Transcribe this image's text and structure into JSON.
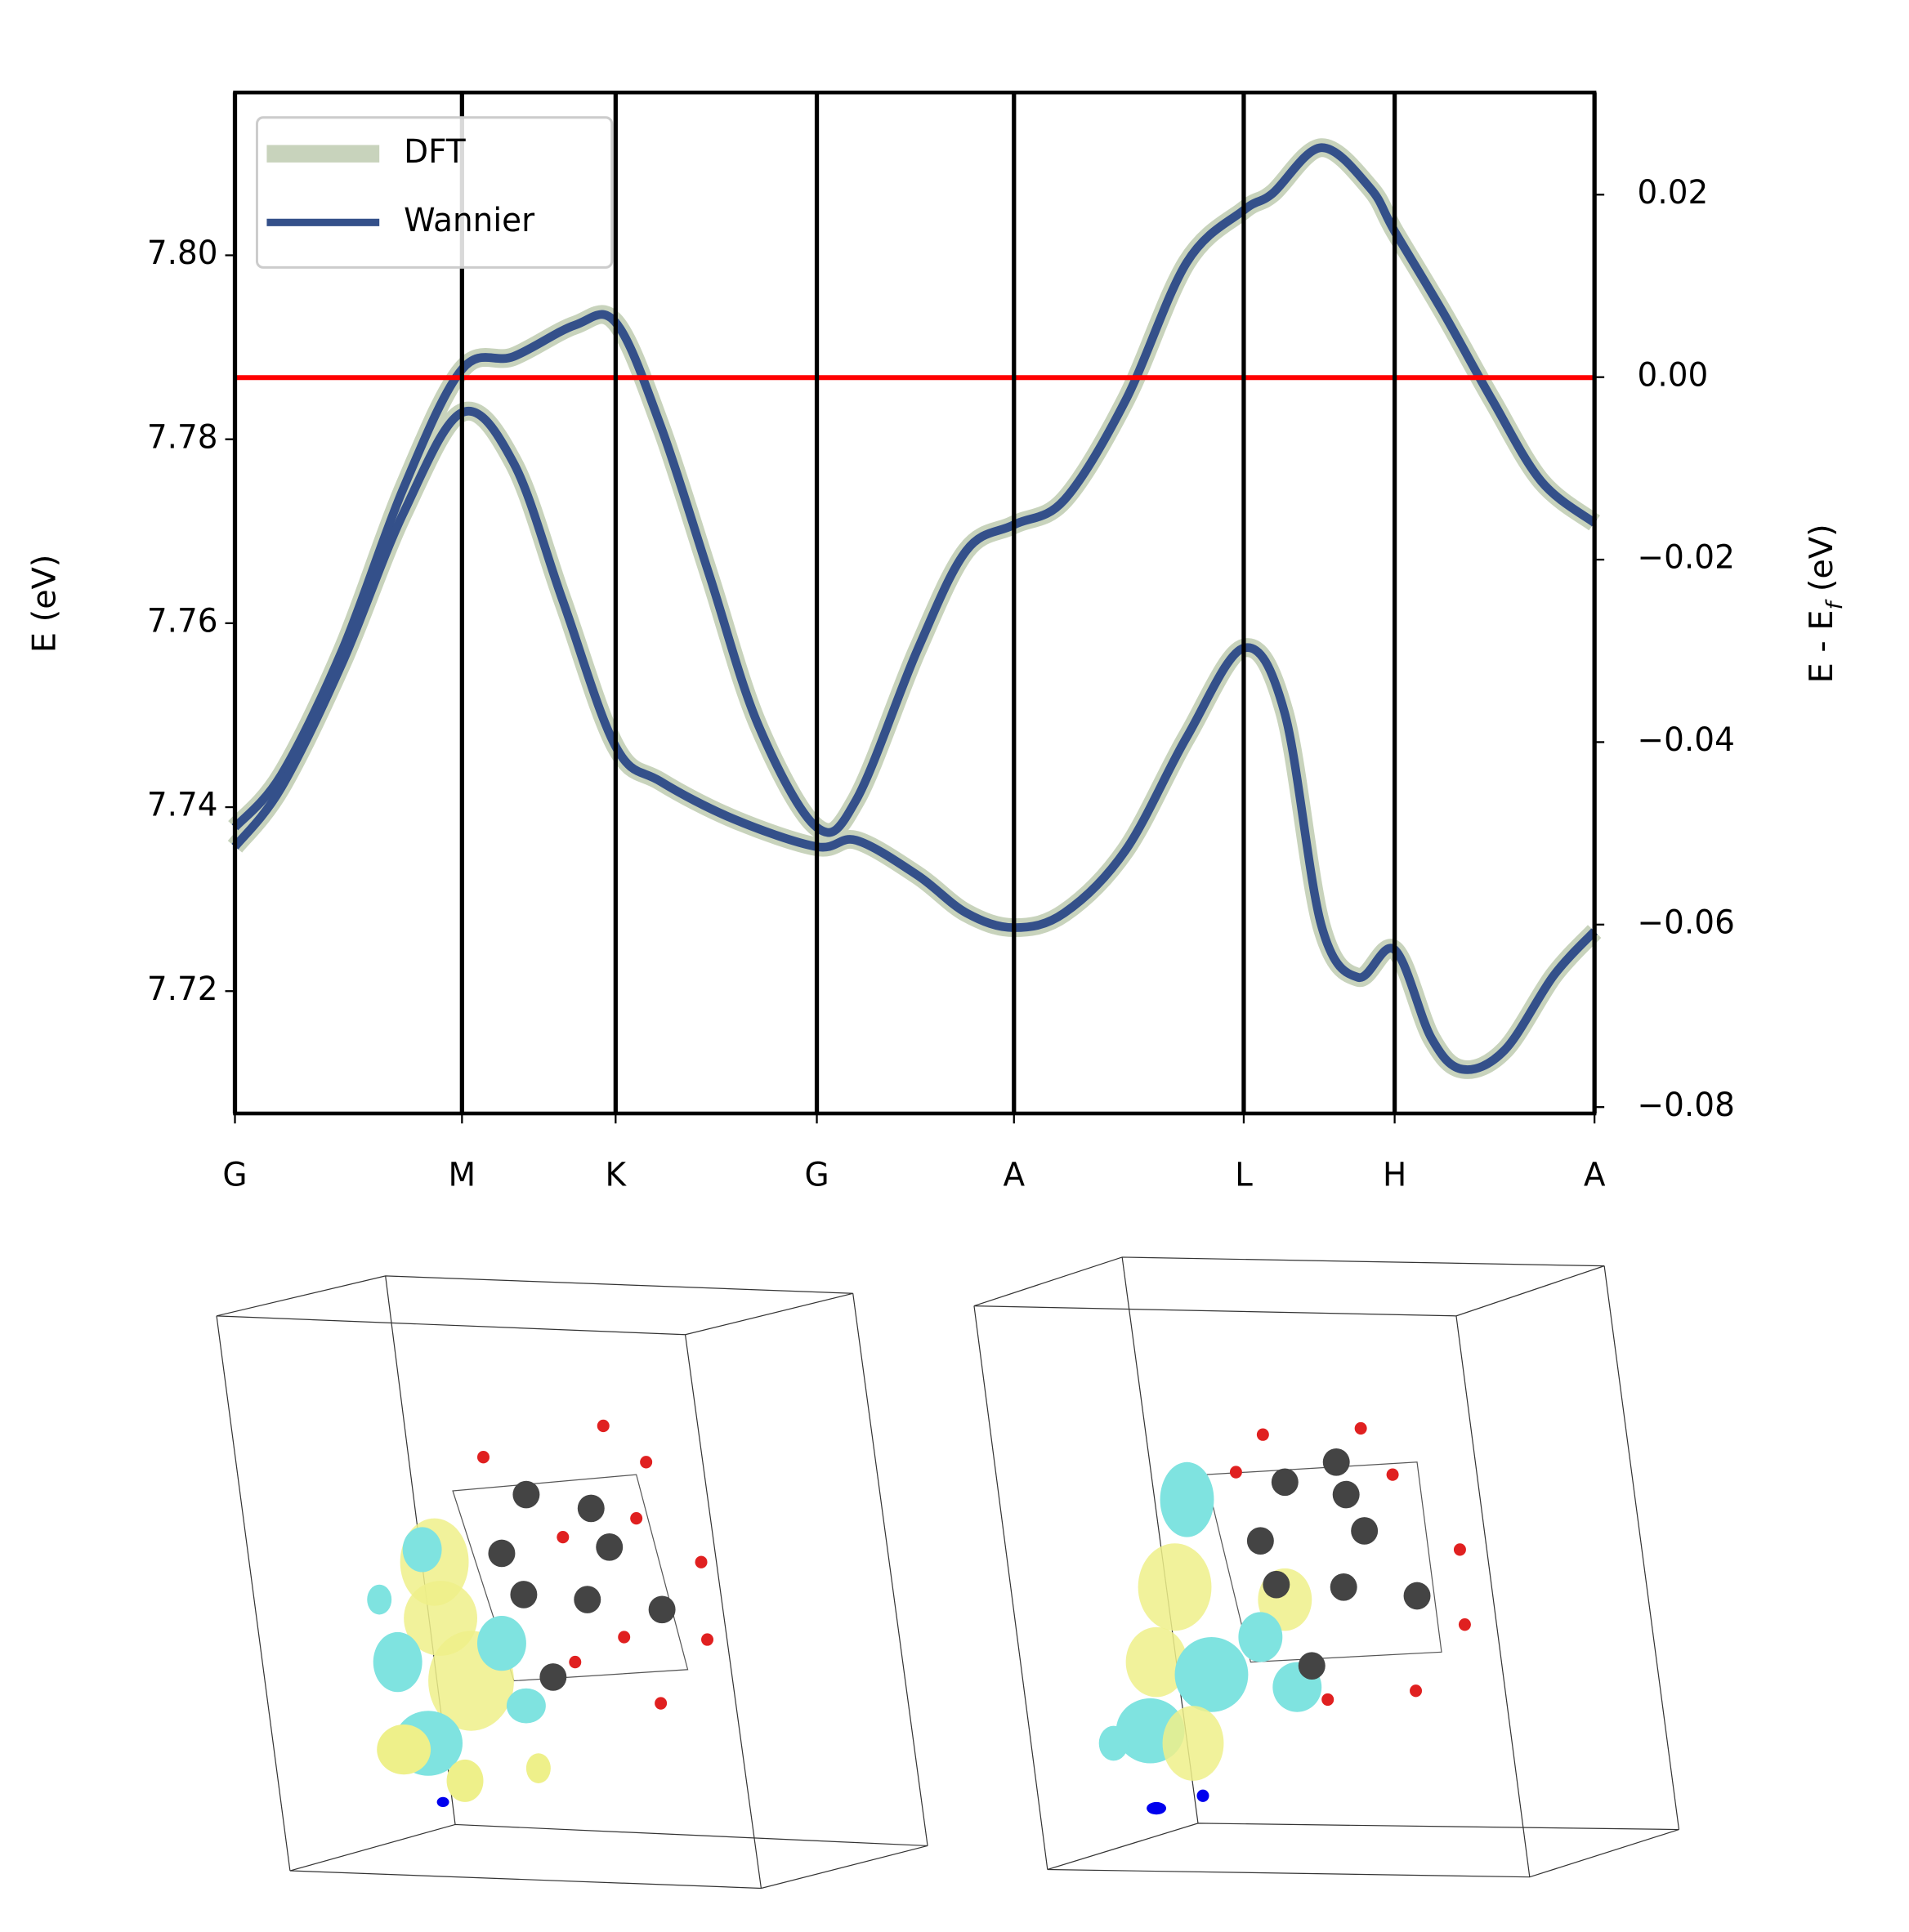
{
  "chart_data": {
    "type": "line",
    "ylabel": "E (eV)",
    "y2label_parts": [
      "E - E",
      "f",
      " (eV)"
    ],
    "xlim": [
      0,
      1
    ],
    "xticks": [
      {
        "value": 0,
        "label": "G"
      },
      {
        "value": 0.167,
        "label": "M"
      },
      {
        "value": 0.28,
        "label": "K"
      },
      {
        "value": 0.428,
        "label": "G"
      },
      {
        "value": 0.573,
        "label": "A"
      },
      {
        "value": 0.742,
        "label": "L"
      },
      {
        "value": 0.853,
        "label": "H"
      },
      {
        "value": 1,
        "label": "A"
      }
    ],
    "ylim": [
      7.7067,
      7.8177
    ],
    "yticks": [
      {
        "value": 7.72,
        "label": "7.72"
      },
      {
        "value": 7.74,
        "label": "7.74"
      },
      {
        "value": 7.76,
        "label": "7.76"
      },
      {
        "value": 7.78,
        "label": "7.78"
      },
      {
        "value": 7.8,
        "label": "7.80"
      }
    ],
    "y2lim": [
      -0.0807,
      0.0312
    ],
    "y2ticks": [
      {
        "value": -0.08,
        "label": "−0.08"
      },
      {
        "value": -0.06,
        "label": "−0.06"
      },
      {
        "value": -0.04,
        "label": "−0.04"
      },
      {
        "value": -0.02,
        "label": "−0.02"
      },
      {
        "value": 0,
        "label": "0.00"
      },
      0.02
    ],
    "fermi_level": 7.7867,
    "fermi_color": "#ff0000",
    "legend": "upper left",
    "series": [
      {
        "name": "DFT",
        "color": "#c8d3bc"
      },
      {
        "name": "Wannier",
        "color": "#34508a"
      }
    ],
    "bands": [
      {
        "x": [
          0,
          0.034,
          0.079,
          0.124,
          0.167,
          0.205,
          0.25,
          0.28,
          0.313,
          0.349,
          0.385,
          0.428,
          0.457,
          0.502,
          0.538,
          0.573,
          0.61,
          0.655,
          0.7,
          0.742,
          0.763,
          0.799,
          0.835,
          0.853,
          0.889,
          0.925,
          0.961,
          1
        ],
        "values": [
          7.7378,
          7.7435,
          7.7571,
          7.7747,
          7.7876,
          7.789,
          7.7924,
          7.7927,
          7.7815,
          7.7652,
          7.7489,
          7.7378,
          7.7408,
          7.7571,
          7.7679,
          7.7707,
          7.7734,
          7.7842,
          7.7992,
          7.8049,
          7.8067,
          7.8117,
          7.8073,
          7.8026,
          7.7937,
          7.7842,
          7.7754,
          7.7709
        ]
      },
      {
        "x": [
          0,
          0.034,
          0.079,
          0.124,
          0.167,
          0.205,
          0.241,
          0.28,
          0.313,
          0.367,
          0.428,
          0.457,
          0.502,
          0.538,
          0.573,
          0.61,
          0.655,
          0.7,
          0.742,
          0.772,
          0.799,
          0.826,
          0.853,
          0.88,
          0.903,
          0.934,
          0.97,
          1
        ],
        "values": [
          7.7357,
          7.7421,
          7.7557,
          7.772,
          7.7829,
          7.7774,
          7.7625,
          7.7466,
          7.7428,
          7.7387,
          7.7357,
          7.7364,
          7.7326,
          7.7285,
          7.7269,
          7.7285,
          7.7353,
          7.7476,
          7.7573,
          7.7503,
          7.7272,
          7.7215,
          7.7245,
          7.7149,
          7.7115,
          7.7136,
          7.7217,
          7.7265
        ]
      }
    ]
  }
}
